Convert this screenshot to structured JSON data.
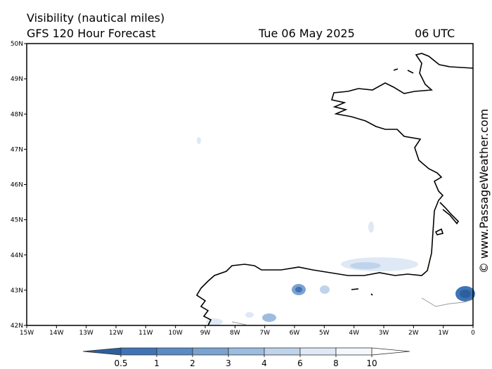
{
  "header": {
    "title": "Visibility (nautical miles)",
    "subtitle": "GFS 120 Hour Forecast",
    "date": "Tue 06 May 2025",
    "time": "06 UTC"
  },
  "map": {
    "lat_ticks": [
      {
        "value": 50,
        "label": "50N"
      },
      {
        "value": 49,
        "label": "49N"
      },
      {
        "value": 48,
        "label": "48N"
      },
      {
        "value": 47,
        "label": "47N"
      },
      {
        "value": 46,
        "label": "46N"
      },
      {
        "value": 45,
        "label": "45N"
      },
      {
        "value": 44,
        "label": "44N"
      },
      {
        "value": 43,
        "label": "43N"
      },
      {
        "value": 42,
        "label": "42N"
      }
    ],
    "lon_ticks": [
      {
        "value": -15,
        "label": "15W"
      },
      {
        "value": -14,
        "label": "14W"
      },
      {
        "value": -13,
        "label": "13W"
      },
      {
        "value": -12,
        "label": "12W"
      },
      {
        "value": -11,
        "label": "11W"
      },
      {
        "value": -10,
        "label": "10W"
      },
      {
        "value": -9,
        "label": "9W"
      },
      {
        "value": -8,
        "label": "8W"
      },
      {
        "value": -7,
        "label": "7W"
      },
      {
        "value": -6,
        "label": "6W"
      },
      {
        "value": -5,
        "label": "5W"
      },
      {
        "value": -4,
        "label": "4W"
      },
      {
        "value": -3,
        "label": "3W"
      },
      {
        "value": -2,
        "label": "2W"
      },
      {
        "value": -1,
        "label": "1W"
      },
      {
        "value": 0,
        "label": "0"
      }
    ]
  },
  "legend": {
    "labels": [
      0.5,
      1,
      2,
      3,
      4,
      6,
      8,
      10
    ],
    "colors": [
      "#2d5f9f",
      "#3f74b6",
      "#5a8bc4",
      "#7ba3d1",
      "#9dbcdf",
      "#bfd4ea",
      "#dfe9f5",
      "#f4f8fc",
      "#ffffff"
    ]
  },
  "credit": "© www.PassageWeather.com"
}
